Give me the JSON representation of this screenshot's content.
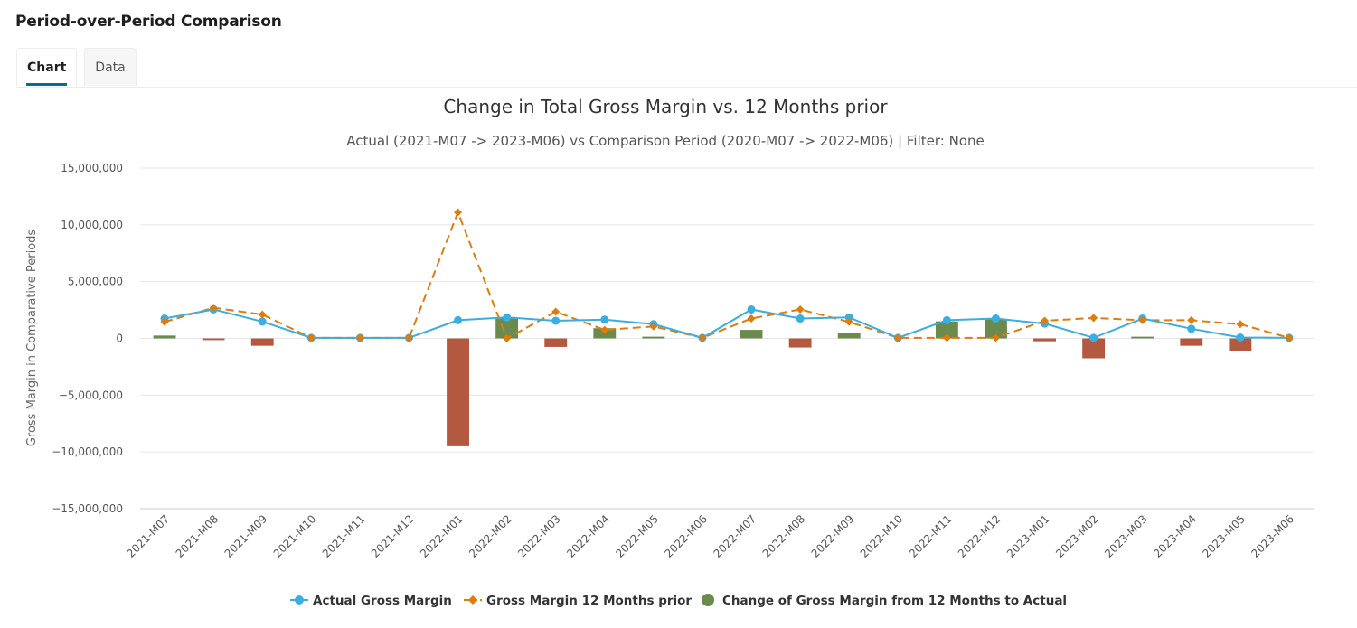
{
  "page": {
    "title": "Period-over-Period Comparison",
    "tabs": [
      {
        "label": "Chart",
        "active": true
      },
      {
        "label": "Data",
        "active": false
      }
    ]
  },
  "colors": {
    "actual": "#3aaee0",
    "prior": "#e07b0c",
    "positive": "#6b8a4e",
    "negative": "#b35940",
    "grid": "#e6e6e6"
  },
  "chart_data": {
    "type": "bar+line",
    "title": "Change in Total Gross Margin vs. 12 Months prior",
    "subtitle": "Actual (2021-M07 -> 2023-M06) vs Comparison Period (2020-M07 -> 2022-M06) | Filter: None",
    "ylabel": "Gross Margin in Comparative Periods",
    "ylim": [
      -15000000,
      15000000
    ],
    "yticks": [
      15000000,
      10000000,
      5000000,
      0,
      -5000000,
      -10000000,
      -15000000
    ],
    "ytick_labels": [
      "15,000,000",
      "10,000,000",
      "5,000,000",
      "0",
      "−5,000,000",
      "−10,000,000",
      "−15,000,000"
    ],
    "categories": [
      "2021-M07",
      "2021-M08",
      "2021-M09",
      "2021-M10",
      "2021-M11",
      "2021-M12",
      "2022-M01",
      "2022-M02",
      "2022-M03",
      "2022-M04",
      "2022-M05",
      "2022-M06",
      "2022-M07",
      "2022-M08",
      "2022-M09",
      "2022-M10",
      "2022-M11",
      "2022-M12",
      "2023-M01",
      "2023-M02",
      "2023-M03",
      "2023-M04",
      "2023-M05",
      "2023-M06"
    ],
    "series": [
      {
        "name": "Actual Gross Margin",
        "type": "line",
        "values": [
          1750000,
          2550000,
          1480000,
          50000,
          50000,
          50000,
          1600000,
          1850000,
          1550000,
          1650000,
          1250000,
          50000,
          2550000,
          1750000,
          1850000,
          50000,
          1600000,
          1750000,
          1300000,
          50000,
          1750000,
          850000,
          80000,
          50000
        ]
      },
      {
        "name": "Gross Margin 12 Months prior",
        "type": "line",
        "values": [
          1450000,
          2700000,
          2100000,
          50000,
          50000,
          50000,
          11100000,
          0,
          2350000,
          750000,
          1050000,
          50000,
          1750000,
          2550000,
          1450000,
          50000,
          50000,
          50000,
          1550000,
          1800000,
          1600000,
          1600000,
          1250000,
          50000
        ]
      },
      {
        "name": "Change of Gross Margin from 12 Months to Actual",
        "type": "bar",
        "values": [
          250000,
          -150000,
          -650000,
          0,
          0,
          0,
          -9500000,
          1850000,
          -750000,
          900000,
          150000,
          0,
          750000,
          -800000,
          450000,
          0,
          1500000,
          1700000,
          -250000,
          -1750000,
          150000,
          -650000,
          -1100000,
          0
        ]
      }
    ],
    "legend_position": "bottom-center",
    "grid": true
  }
}
